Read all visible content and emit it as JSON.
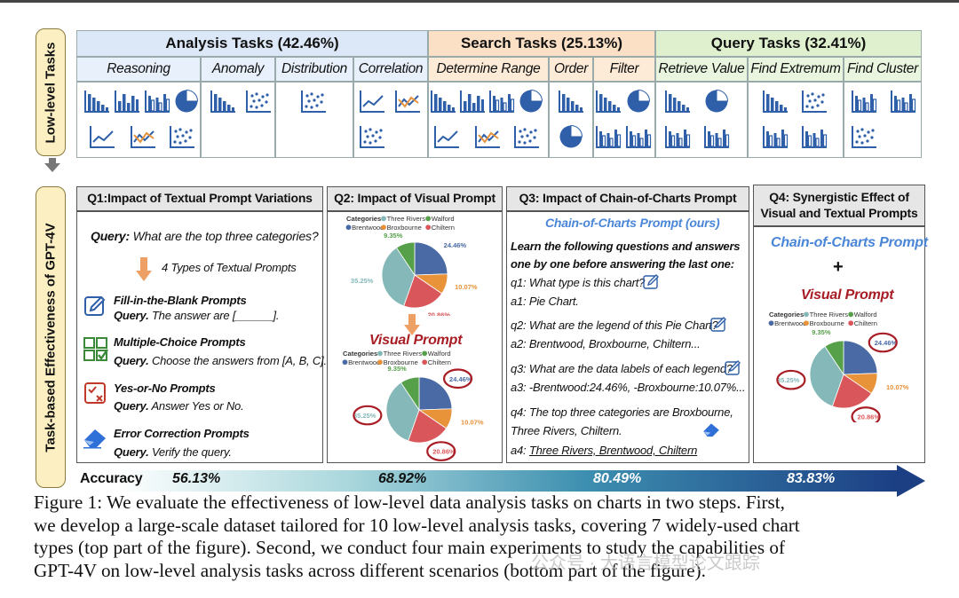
{
  "top_section": {
    "side_label": "Low-level Tasks",
    "groups": [
      {
        "label": "Analysis Tasks (42.46%)",
        "color": "#dce7f7"
      },
      {
        "label": "Search Tasks (25.13%)",
        "color": "#fbe0c6"
      },
      {
        "label": "Query Tasks (32.41%)",
        "color": "#dff0cf"
      }
    ],
    "tasks": [
      "Reasoning",
      "Anomaly",
      "Distribution",
      "Correlation",
      "Determine Range",
      "Order",
      "Filter",
      "Retrieve Value",
      "Find Extremum",
      "Find Cluster"
    ]
  },
  "bottom_section": {
    "side_label": "Task-based Effectiveness of GPT-4V",
    "q1": {
      "title": "Q1:Impact of Textual Prompt Variations",
      "query_prefix": "Query:",
      "query_text": "What are the top three categories?",
      "types_label": "4 Types of Textual Prompts",
      "prompts": [
        {
          "name": "Fill-in-the-Blank Prompts",
          "detail_prefix": "Query.",
          "detail": "The answer are [______]."
        },
        {
          "name": "Multiple-Choice Prompts",
          "detail_prefix": "Query.",
          "detail": "Choose the answers from [A, B, C]."
        },
        {
          "name": "Yes-or-No Prompts",
          "detail_prefix": "Query.",
          "detail": "Answer Yes or No."
        },
        {
          "name": "Error Correction Prompts",
          "detail_prefix": "Query.",
          "detail": "Verify the query."
        }
      ]
    },
    "q2": {
      "title": "Q2: Impact of Visual Prompt",
      "visual_prompt_label": "Visual Prompt"
    },
    "q3": {
      "title": "Q3: Impact of Chain-of-Charts Prompt",
      "subtitle": "Chain-of-Charts Prompt (ours)",
      "intro_1": "Learn the following questions and answers",
      "intro_2": "one by one before answering the last one:",
      "q1": "q1: What type is this chart?",
      "a1": "a1: Pie Chart.",
      "q2": "q2: What are the legend of this Pie Chart?",
      "a2": "a2: Brentwood, Broxbourne, Chiltern...",
      "q3": "q3: What are the data labels of each legend?",
      "a3": "a3: -Brentwood:24.46%, -Broxbourne:10.07%...",
      "q4_1": "q4: The top three categories are Broxbourne,",
      "q4_2": "Three Rivers, Chiltern.",
      "a4_prefix": "a4:",
      "a4": "Three Rivers, Brentwood, Chiltern"
    },
    "q4": {
      "title_1": "Q4: Synergistic Effect of",
      "title_2": "Visual and Textual Prompts",
      "coc_label": "Chain-of-Charts Prompt",
      "plus": "+",
      "visual_label": "Visual Prompt"
    },
    "pie": {
      "legend_title": "Categories",
      "legend": [
        {
          "name": "Three Rivers",
          "color": "#85b8b8"
        },
        {
          "name": "Walford",
          "color": "#55a049"
        },
        {
          "name": "Brentwood",
          "color": "#4a6aa5"
        },
        {
          "name": "Broxbourne",
          "color": "#e8923a"
        },
        {
          "name": "Chiltern",
          "color": "#d9575a"
        }
      ],
      "slices": [
        {
          "name": "Brentwood",
          "value": 24.46,
          "label": "24.46%",
          "color": "#4a6aa5"
        },
        {
          "name": "Broxbourne",
          "value": 10.07,
          "label": "10.07%",
          "color": "#e8923a"
        },
        {
          "name": "Chiltern",
          "value": 20.86,
          "label": "20.86%",
          "color": "#d9575a"
        },
        {
          "name": "Three Rivers",
          "value": 35.25,
          "label": "35.25%",
          "color": "#85b8b8"
        },
        {
          "name": "Walford",
          "value": 9.35,
          "label": "9.35%",
          "color": "#55a049"
        }
      ]
    }
  },
  "accuracy": {
    "label": "Accuracy",
    "values": [
      "56.13%",
      "68.92%",
      "80.49%",
      "83.83%"
    ]
  },
  "caption": {
    "line1": "Figure 1: We evaluate the effectiveness of low-level data analysis tasks on charts in two steps. First,",
    "line2": "we develop a large-scale dataset tailored for 10 low-level analysis tasks, covering 7 widely-used chart",
    "line3": "types (top part of the figure). Second, we conduct four main experiments to study the capabilities of",
    "line4": "GPT-4V on low-level analysis tasks across different scenarios (bottom part of the figure)."
  },
  "watermark": "公众号 · 大语言模型论文跟踪"
}
